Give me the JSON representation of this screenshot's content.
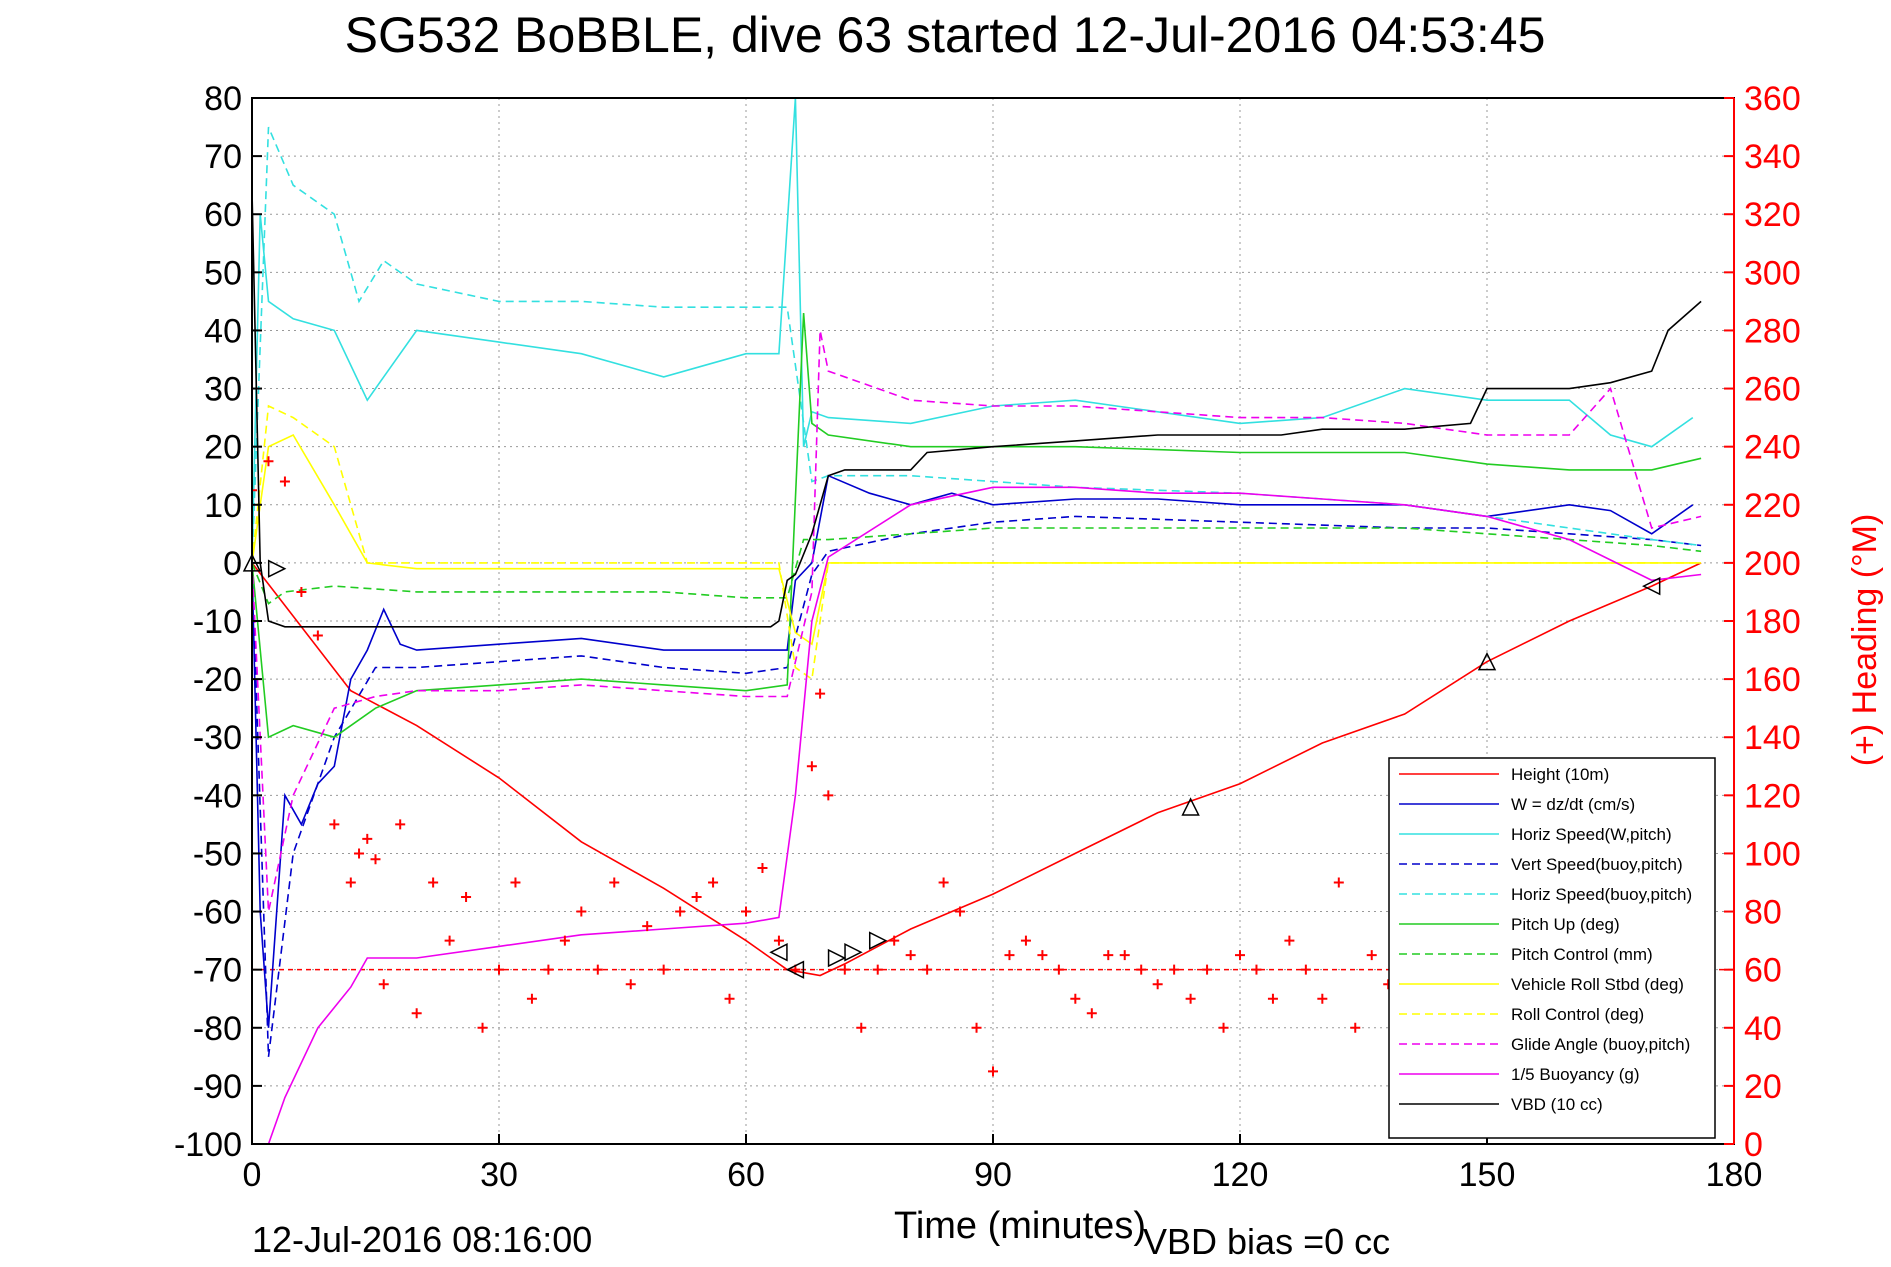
{
  "chart_data": {
    "type": "line",
    "title": "SG532 BoBBLE, dive 63 started 12-Jul-2016 04:53:45",
    "xlabel": "Time (minutes)",
    "ylabel": "",
    "ylabel_right": "(+) Heading (°M)",
    "xlim": [
      0,
      180
    ],
    "ylim": [
      -100,
      80
    ],
    "ylim_right": [
      0,
      360
    ],
    "xticks": [
      "0",
      "30",
      "60",
      "90",
      "120",
      "150",
      "180"
    ],
    "yticks": [
      "80",
      "70",
      "60",
      "50",
      "40",
      "30",
      "20",
      "10",
      "0",
      "-10",
      "-20",
      "-30",
      "-40",
      "-50",
      "-60",
      "-70",
      "-80",
      "-90",
      "-100"
    ],
    "yticks_right": [
      "360",
      "340",
      "320",
      "300",
      "280",
      "260",
      "240",
      "220",
      "200",
      "180",
      "160",
      "140",
      "120",
      "100",
      "80",
      "60",
      "40",
      "20",
      "0"
    ],
    "grid": true,
    "legend_position": "bottom-right",
    "footer_date": "12-Jul-2016 08:16:00",
    "footer_note": "VBD bias =0 cc",
    "colors": {
      "height": "#ff0000",
      "w": "#0000cc",
      "horiz": "#33e0e0",
      "pitch": "#22cc22",
      "roll": "#ffff00",
      "glide": "#ee00ee",
      "vbd": "#000000",
      "heading": "#ff0000"
    },
    "series": [
      {
        "name": "Height (10m)",
        "style": "solid",
        "color": "#ff0000",
        "x": [
          0,
          12,
          20,
          30,
          40,
          50,
          60,
          63,
          65,
          69,
          72,
          80,
          90,
          100,
          110,
          120,
          130,
          140,
          150,
          160,
          170,
          176
        ],
        "y": [
          0,
          -22,
          -28,
          -37,
          -48,
          -56,
          -65,
          -68,
          -70,
          -71,
          -69,
          -63,
          -57,
          -50,
          -43,
          -38,
          -31,
          -26,
          -17,
          -10,
          -4,
          0
        ]
      },
      {
        "name": "W = dz/dt (cm/s)",
        "style": "solid",
        "color": "#0000cc",
        "x": [
          0,
          1,
          2,
          4,
          6,
          8,
          10,
          12,
          14,
          16,
          18,
          20,
          30,
          40,
          50,
          60,
          65,
          66,
          68,
          70,
          75,
          80,
          85,
          90,
          100,
          110,
          120,
          130,
          140,
          150,
          160,
          165,
          170,
          175
        ],
        "y": [
          0,
          -60,
          -80,
          -40,
          -45,
          -38,
          -35,
          -20,
          -15,
          -8,
          -14,
          -15,
          -14,
          -13,
          -15,
          -15,
          -15,
          -3,
          0,
          15,
          12,
          10,
          12,
          10,
          11,
          11,
          10,
          10,
          10,
          8,
          10,
          9,
          5,
          10
        ]
      },
      {
        "name": "Horiz Speed(W,pitch)",
        "style": "solid",
        "color": "#33e0e0",
        "x": [
          0,
          1,
          2,
          5,
          10,
          14,
          16,
          20,
          30,
          40,
          50,
          55,
          60,
          64,
          66,
          67,
          68,
          70,
          80,
          90,
          100,
          110,
          120,
          130,
          140,
          150,
          160,
          165,
          170,
          175
        ],
        "y": [
          0,
          60,
          45,
          42,
          40,
          28,
          32,
          40,
          38,
          36,
          32,
          34,
          36,
          36,
          80,
          20,
          26,
          25,
          24,
          27,
          28,
          26,
          24,
          25,
          30,
          28,
          28,
          22,
          20,
          25
        ]
      },
      {
        "name": "Vert Speed(buoy,pitch)",
        "style": "dashed",
        "color": "#0000cc",
        "x": [
          0,
          2,
          5,
          10,
          15,
          20,
          30,
          40,
          50,
          60,
          65,
          68,
          70,
          80,
          90,
          100,
          120,
          140,
          150,
          160,
          170,
          176
        ],
        "y": [
          0,
          -85,
          -50,
          -30,
          -18,
          -18,
          -17,
          -16,
          -18,
          -19,
          -18,
          -2,
          2,
          5,
          7,
          8,
          7,
          6,
          6,
          5,
          4,
          3
        ]
      },
      {
        "name": "Horiz Speed(buoy,pitch)",
        "style": "dashed",
        "color": "#33e0e0",
        "x": [
          0,
          2,
          5,
          10,
          13,
          16,
          20,
          30,
          40,
          50,
          60,
          65,
          68,
          70,
          80,
          90,
          100,
          120,
          140,
          150,
          160,
          170,
          176
        ],
        "y": [
          0,
          75,
          65,
          60,
          45,
          52,
          48,
          45,
          45,
          44,
          44,
          44,
          14,
          15,
          15,
          14,
          13,
          12,
          10,
          8,
          6,
          4,
          3
        ]
      },
      {
        "name": "Pitch Up (deg)",
        "style": "solid",
        "color": "#22cc22",
        "x": [
          0,
          2,
          5,
          10,
          15,
          20,
          30,
          40,
          50,
          60,
          65,
          67,
          68,
          70,
          80,
          90,
          100,
          120,
          140,
          150,
          160,
          170,
          176
        ],
        "y": [
          0,
          -30,
          -28,
          -30,
          -25,
          -22,
          -21,
          -20,
          -21,
          -22,
          -21,
          43,
          24,
          22,
          20,
          20,
          20,
          19,
          19,
          17,
          16,
          16,
          18
        ]
      },
      {
        "name": "Pitch Control (mm)",
        "style": "dashed",
        "color": "#22cc22",
        "x": [
          0,
          2,
          4,
          10,
          20,
          30,
          40,
          50,
          60,
          65,
          67,
          70,
          80,
          90,
          100,
          110,
          120,
          130,
          140,
          150,
          160,
          170,
          176
        ],
        "y": [
          0,
          -7,
          -5,
          -4,
          -5,
          -5,
          -5,
          -5,
          -6,
          -6,
          4,
          4,
          5,
          6,
          6,
          6,
          6,
          6,
          6,
          5,
          4,
          3,
          2
        ]
      },
      {
        "name": "Vehicle Roll Stbd (deg)",
        "style": "solid",
        "color": "#ffff00",
        "x": [
          0,
          2,
          5,
          10,
          14,
          20,
          30,
          40,
          50,
          60,
          64,
          66,
          68,
          70,
          80,
          90,
          100,
          110,
          120,
          130,
          140,
          150,
          160,
          170,
          176
        ],
        "y": [
          0,
          20,
          22,
          10,
          0,
          -1,
          -1,
          -1,
          -1,
          -1,
          -1,
          -12,
          -14,
          0,
          0,
          0,
          0,
          0,
          0,
          0,
          0,
          0,
          0,
          0,
          0
        ]
      },
      {
        "name": "Roll Control (deg)",
        "style": "dashed",
        "color": "#ffff00",
        "x": [
          0,
          2,
          5,
          10,
          14,
          20,
          30,
          40,
          50,
          60,
          64,
          66,
          68,
          70,
          80,
          90,
          100,
          110,
          120,
          130,
          140,
          150,
          160,
          170,
          176
        ],
        "y": [
          0,
          27,
          25,
          20,
          0,
          0,
          0,
          0,
          0,
          0,
          0,
          -18,
          -20,
          0,
          0,
          0,
          0,
          0,
          0,
          0,
          0,
          0,
          0,
          0,
          0
        ]
      },
      {
        "name": "Glide Angle (buoy,pitch)",
        "style": "dashed",
        "color": "#ee00ee",
        "x": [
          0,
          2,
          5,
          10,
          15,
          20,
          30,
          40,
          50,
          60,
          65,
          68,
          69,
          70,
          80,
          90,
          100,
          110,
          120,
          130,
          140,
          150,
          160,
          165,
          170,
          176
        ],
        "y": [
          0,
          -60,
          -40,
          -25,
          -23,
          -22,
          -22,
          -21,
          -22,
          -23,
          -23,
          -5,
          40,
          33,
          28,
          27,
          27,
          26,
          25,
          25,
          24,
          22,
          22,
          30,
          6,
          8
        ]
      },
      {
        "name": "1/5 Buoyancy (g)",
        "style": "solid",
        "color": "#ee00ee",
        "x": [
          0,
          2,
          4,
          8,
          12,
          14,
          20,
          30,
          40,
          50,
          60,
          64,
          66,
          68,
          70,
          80,
          90,
          100,
          110,
          120,
          130,
          140,
          150,
          160,
          170,
          176
        ],
        "y": [
          -100,
          -100,
          -92,
          -80,
          -73,
          -68,
          -68,
          -66,
          -64,
          -63,
          -62,
          -61,
          -40,
          -10,
          1,
          10,
          13,
          13,
          12,
          12,
          11,
          10,
          8,
          4,
          -3,
          -2
        ]
      },
      {
        "name": "VBD (10 cc)",
        "style": "solid",
        "color": "#000000",
        "x": [
          0,
          1,
          2,
          4,
          10,
          20,
          30,
          40,
          50,
          60,
          63,
          64,
          65,
          66,
          68,
          70,
          72,
          80,
          82,
          90,
          100,
          110,
          120,
          125,
          130,
          140,
          148,
          150,
          160,
          165,
          170,
          172,
          176
        ],
        "y": [
          64,
          0,
          -10,
          -11,
          -11,
          -11,
          -11,
          -11,
          -11,
          -11,
          -11,
          -10,
          -3,
          -2,
          5,
          15,
          16,
          16,
          19,
          20,
          21,
          22,
          22,
          22,
          23,
          23,
          24,
          30,
          30,
          31,
          33,
          40,
          45
        ]
      }
    ],
    "heading": {
      "name": "(+) Heading (°M)",
      "color": "#ff0000",
      "axis": "right",
      "mean": 60,
      "x": [
        0,
        2,
        4,
        6,
        8,
        10,
        12,
        13,
        14,
        15,
        16,
        18,
        20,
        22,
        24,
        26,
        28,
        30,
        32,
        34,
        36,
        38,
        40,
        42,
        44,
        46,
        48,
        50,
        52,
        54,
        56,
        58,
        60,
        62,
        64,
        66,
        68,
        69,
        70,
        72,
        74,
        76,
        78,
        80,
        82,
        84,
        86,
        88,
        90,
        92,
        94,
        96,
        98,
        100,
        102,
        104,
        106,
        108,
        110,
        112,
        114,
        116,
        118,
        120,
        122,
        124,
        126,
        128,
        130,
        132,
        134,
        136,
        138
      ],
      "y": [
        225,
        235,
        228,
        190,
        175,
        110,
        90,
        100,
        105,
        98,
        55,
        110,
        45,
        90,
        70,
        85,
        40,
        60,
        90,
        50,
        60,
        70,
        80,
        60,
        90,
        55,
        75,
        60,
        80,
        85,
        90,
        50,
        80,
        95,
        70,
        60,
        130,
        155,
        120,
        60,
        40,
        60,
        70,
        65,
        60,
        90,
        80,
        40,
        25,
        65,
        70,
        65,
        60,
        50,
        45,
        65,
        65,
        60,
        55,
        60,
        50,
        60,
        40,
        65,
        60,
        50,
        70,
        60,
        50,
        90,
        40,
        65,
        55
      ]
    },
    "markers": [
      {
        "name": "triangle",
        "x": [
          0,
          114,
          150
        ],
        "y": [
          0,
          -42,
          -17
        ]
      },
      {
        "name": "triangle-right",
        "x": [
          3,
          71,
          73,
          76
        ],
        "y": [
          -1,
          -68,
          -67,
          -65
        ]
      },
      {
        "name": "triangle-left",
        "x": [
          64,
          66,
          170
        ],
        "y": [
          -67,
          -70,
          -4
        ]
      }
    ]
  }
}
